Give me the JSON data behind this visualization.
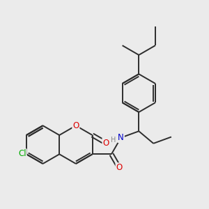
{
  "bg_color": "#ebebeb",
  "bond_color": "#2d2d2d",
  "atom_colors": {
    "O": "#dd0000",
    "N": "#0000cc",
    "Cl": "#00aa00",
    "H": "#888888",
    "C": "#2d2d2d"
  },
  "bond_width": 1.4,
  "font_size": 8.5,
  "fig_size": [
    3.0,
    3.0
  ],
  "dpi": 100
}
